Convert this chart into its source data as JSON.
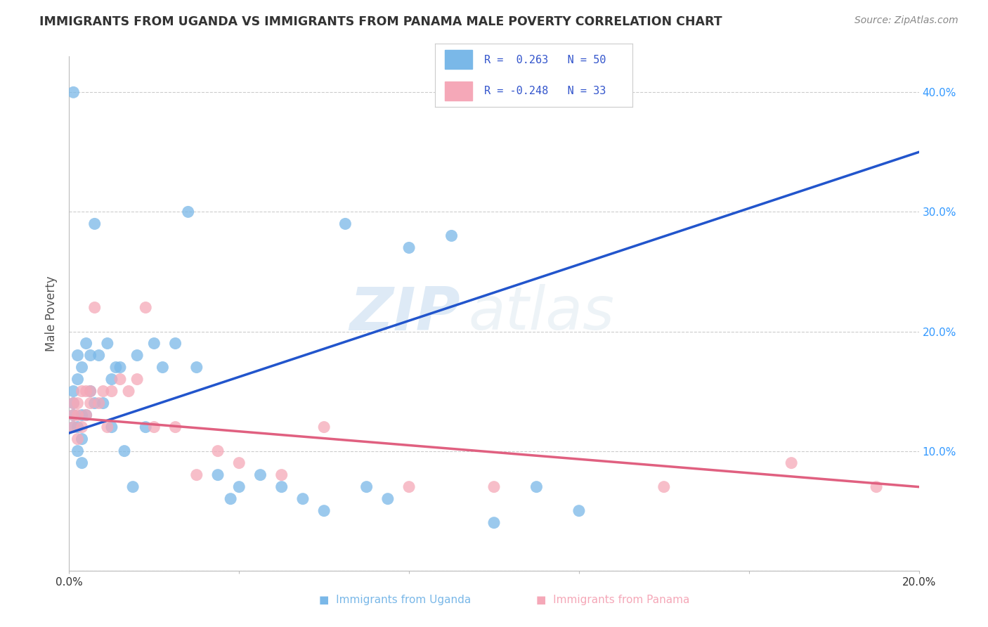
{
  "title": "IMMIGRANTS FROM UGANDA VS IMMIGRANTS FROM PANAMA MALE POVERTY CORRELATION CHART",
  "source": "Source: ZipAtlas.com",
  "ylabel": "Male Poverty",
  "xlim": [
    0.0,
    0.2
  ],
  "ylim": [
    0.0,
    0.43
  ],
  "legend_R_uganda": "R =  0.263",
  "legend_N_uganda": "N = 50",
  "legend_R_panama": "R = -0.248",
  "legend_N_panama": "N = 33",
  "uganda_color": "#7ab8e8",
  "panama_color": "#f5a8b8",
  "uganda_line_color": "#2255cc",
  "uganda_dash_color": "#99bbdd",
  "panama_line_color": "#e06080",
  "background_color": "#ffffff",
  "grid_color": "#cccccc",
  "watermark_zip": "ZIP",
  "watermark_atlas": "atlas",
  "title_color": "#333333",
  "source_color": "#888888",
  "right_tick_color": "#3399ff",
  "legend_text_color": "#3355cc",
  "uganda_x": [
    0.001,
    0.001,
    0.001,
    0.001,
    0.002,
    0.002,
    0.002,
    0.002,
    0.003,
    0.003,
    0.003,
    0.003,
    0.004,
    0.004,
    0.005,
    0.005,
    0.006,
    0.006,
    0.007,
    0.008,
    0.009,
    0.01,
    0.01,
    0.011,
    0.012,
    0.013,
    0.015,
    0.016,
    0.018,
    0.02,
    0.022,
    0.025,
    0.028,
    0.03,
    0.035,
    0.038,
    0.04,
    0.045,
    0.05,
    0.055,
    0.06,
    0.065,
    0.07,
    0.075,
    0.08,
    0.09,
    0.1,
    0.11,
    0.12,
    0.001
  ],
  "uganda_y": [
    0.12,
    0.13,
    0.14,
    0.15,
    0.1,
    0.12,
    0.16,
    0.18,
    0.09,
    0.11,
    0.13,
    0.17,
    0.13,
    0.19,
    0.15,
    0.18,
    0.14,
    0.29,
    0.18,
    0.14,
    0.19,
    0.12,
    0.16,
    0.17,
    0.17,
    0.1,
    0.07,
    0.18,
    0.12,
    0.19,
    0.17,
    0.19,
    0.3,
    0.17,
    0.08,
    0.06,
    0.07,
    0.08,
    0.07,
    0.06,
    0.05,
    0.29,
    0.07,
    0.06,
    0.27,
    0.28,
    0.04,
    0.07,
    0.05,
    0.4
  ],
  "panama_x": [
    0.001,
    0.001,
    0.001,
    0.002,
    0.002,
    0.002,
    0.003,
    0.003,
    0.004,
    0.004,
    0.005,
    0.005,
    0.006,
    0.007,
    0.008,
    0.009,
    0.01,
    0.012,
    0.014,
    0.016,
    0.018,
    0.02,
    0.025,
    0.03,
    0.035,
    0.04,
    0.05,
    0.06,
    0.08,
    0.1,
    0.14,
    0.17,
    0.19
  ],
  "panama_y": [
    0.12,
    0.13,
    0.14,
    0.11,
    0.13,
    0.14,
    0.12,
    0.15,
    0.13,
    0.15,
    0.14,
    0.15,
    0.22,
    0.14,
    0.15,
    0.12,
    0.15,
    0.16,
    0.15,
    0.16,
    0.22,
    0.12,
    0.12,
    0.08,
    0.1,
    0.09,
    0.08,
    0.12,
    0.07,
    0.07,
    0.07,
    0.09,
    0.07
  ],
  "uganda_trend_x0": 0.0,
  "uganda_trend_y0": 0.115,
  "uganda_trend_x1": 0.2,
  "uganda_trend_y1": 0.35,
  "panama_trend_x0": 0.0,
  "panama_trend_y0": 0.128,
  "panama_trend_x1": 0.2,
  "panama_trend_y1": 0.07
}
